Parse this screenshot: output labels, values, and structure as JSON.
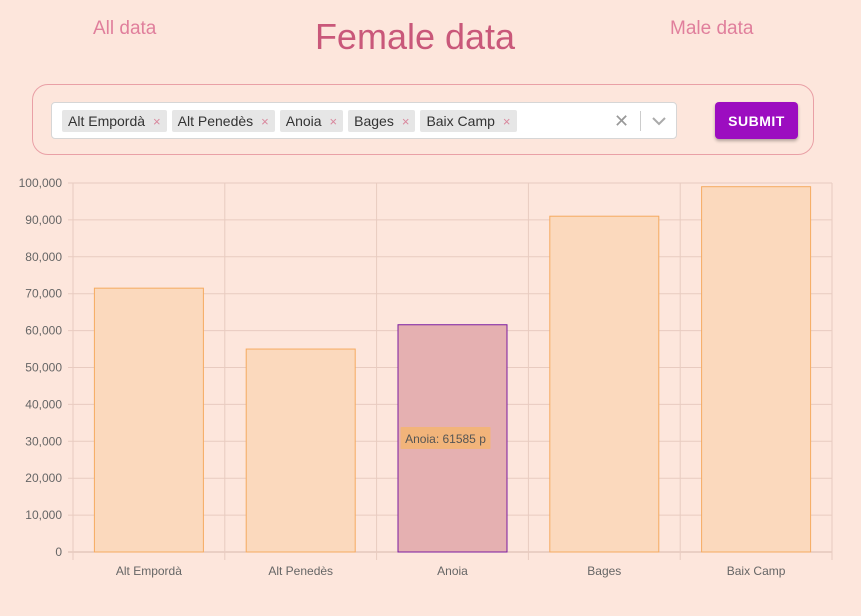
{
  "nav": {
    "all_label": "All data",
    "male_label": "Male data"
  },
  "title": "Female data",
  "filter": {
    "chips": [
      "Alt Empordà",
      "Alt Penedès",
      "Anoia",
      "Bages",
      "Baix Camp"
    ],
    "remove_glyph": "×",
    "clear_glyph": "✕",
    "submit_label": "SUBMIT"
  },
  "colors": {
    "bar_fill": "#fbd9bd",
    "bar_stroke": "#f5aa60",
    "active_fill": "#e5b0b1",
    "active_stroke": "#7a1aa0",
    "grid": "#e8cbc0",
    "tooltip_bg": "#f2b47a"
  },
  "chart_data": {
    "type": "bar",
    "categories": [
      "Alt Empordà",
      "Alt Penedès",
      "Anoia",
      "Bages",
      "Baix Camp"
    ],
    "values": [
      71500,
      55000,
      61585,
      91000,
      99000
    ],
    "ylim": [
      0,
      100000
    ],
    "yticks": [
      "0",
      "10,000",
      "20,000",
      "30,000",
      "40,000",
      "50,000",
      "60,000",
      "70,000",
      "80,000",
      "90,000",
      "100,000"
    ],
    "grid": true,
    "active_index": 2,
    "tooltip": "Anoia: 61585 p"
  }
}
